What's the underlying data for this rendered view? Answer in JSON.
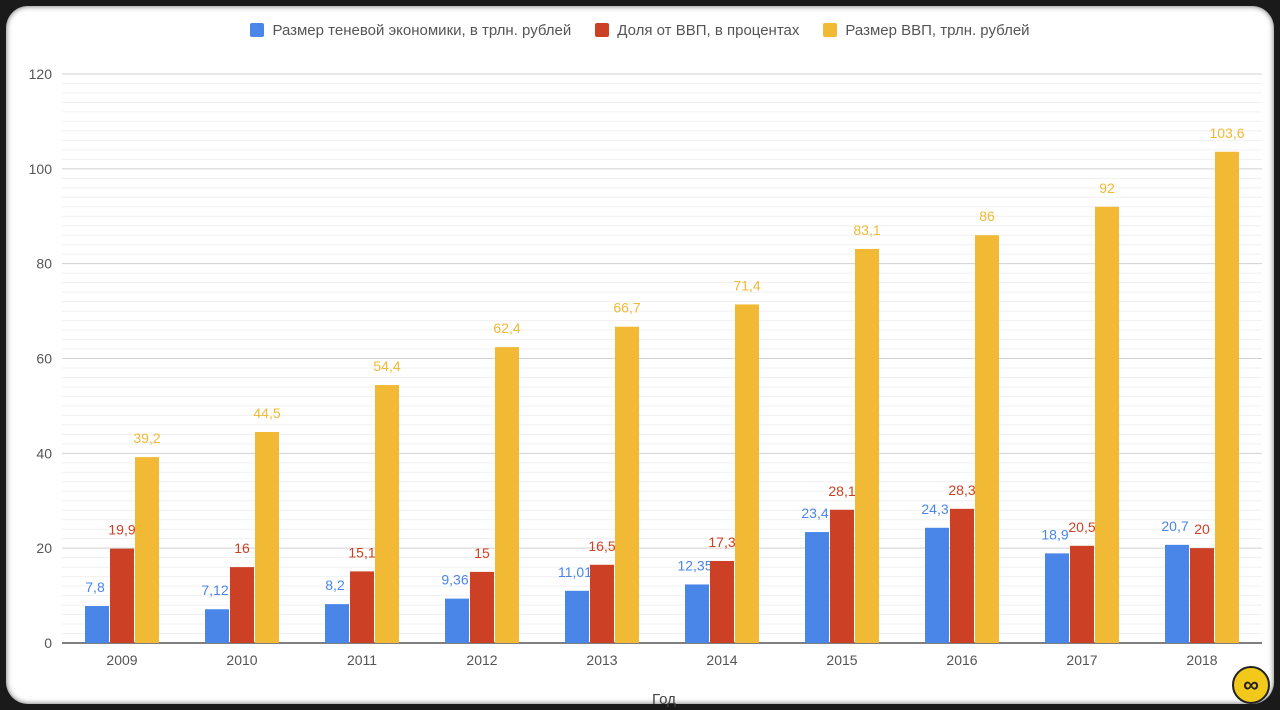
{
  "chart_data": {
    "type": "bar",
    "title": "",
    "xlabel": "Год",
    "ylabel": "",
    "ylim": [
      0,
      120
    ],
    "y_ticks": [
      0,
      20,
      40,
      60,
      80,
      100,
      120
    ],
    "grid": true,
    "legend_position": "top",
    "categories": [
      "2009",
      "2010",
      "2011",
      "2012",
      "2013",
      "2014",
      "2015",
      "2016",
      "2017",
      "2018"
    ],
    "series": [
      {
        "name": "Размер теневой экономики, в трлн. рублей",
        "color": "#4a86e8",
        "values": [
          7.8,
          7.12,
          8.2,
          9.36,
          11.01,
          12.35,
          23.4,
          24.3,
          18.9,
          20.7
        ],
        "labels": [
          "7,8",
          "7,12",
          "8,2",
          "9,36",
          "11,01",
          "12,35",
          "23,4",
          "24,3",
          "18,9",
          "20,7"
        ]
      },
      {
        "name": "Доля от ВВП, в процентах",
        "color": "#cc4125",
        "values": [
          19.9,
          16,
          15.1,
          15,
          16.5,
          17.3,
          28.1,
          28.3,
          20.5,
          20
        ],
        "labels": [
          "19,9",
          "16",
          "15,1",
          "15",
          "16,5",
          "17,3",
          "28,1",
          "28,3",
          "20,5",
          "20"
        ]
      },
      {
        "name": "Размер ВВП, трлн. рублей",
        "color": "#f1b934",
        "values": [
          39.2,
          44.5,
          54.4,
          62.4,
          66.7,
          71.4,
          83.1,
          86,
          92,
          103.6
        ],
        "labels": [
          "39,2",
          "44,5",
          "54,4",
          "62,4",
          "66,7",
          "71,4",
          "83,1",
          "86",
          "92",
          "103,6"
        ]
      }
    ]
  },
  "logo": {
    "icon": "infinity-logo-icon",
    "glyph": "∞",
    "color": "#f2c81a"
  }
}
